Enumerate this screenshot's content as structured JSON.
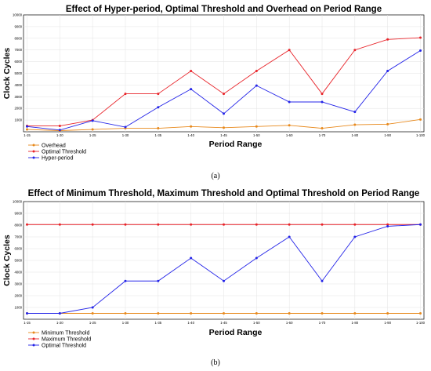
{
  "chart_data": [
    {
      "type": "line",
      "title": "Effect of Hyper-period, Optimal Threshold and Overhead on Period Range",
      "xlabel": "Period Range",
      "ylabel": "Clock Cycles",
      "categories": [
        "1-15",
        "1-20",
        "1-25",
        "1-30",
        "1-35",
        "1-40",
        "1-45",
        "1-50",
        "1-60",
        "1-70",
        "1-80",
        "1-90",
        "1-100"
      ],
      "yticks": [
        "1000",
        "2000",
        "3000",
        "4000",
        "5000",
        "6000",
        "7000",
        "8000",
        "9000",
        "10000"
      ],
      "ylim": [
        0,
        10000
      ],
      "grid": true,
      "legend_position": "bottom-left",
      "caption": "(a)",
      "series": [
        {
          "name": "Overhead",
          "color": "#E8891C",
          "values": [
            200,
            100,
            200,
            300,
            300,
            450,
            350,
            450,
            550,
            300,
            600,
            650,
            1050
          ]
        },
        {
          "name": "Optimal Threshold",
          "color": "#E8242A",
          "values": [
            500,
            500,
            1000,
            3250,
            3250,
            5200,
            3250,
            5200,
            7000,
            3250,
            7000,
            7900,
            8050
          ]
        },
        {
          "name": "Hyper-period",
          "color": "#2424E8",
          "values": [
            450,
            150,
            950,
            400,
            2100,
            3650,
            1550,
            3950,
            2550,
            2550,
            1700,
            5200,
            6950
          ]
        }
      ]
    },
    {
      "type": "line",
      "title": "Effect of Minimum Threshold, Maximum Threshold and Optimal Threshold on Period Range",
      "xlabel": "Period Range",
      "ylabel": "Clock Cycles",
      "categories": [
        "1-15",
        "1-20",
        "1-25",
        "1-30",
        "1-35",
        "1-40",
        "1-45",
        "1-50",
        "1-60",
        "1-70",
        "1-80",
        "1-90",
        "1-100"
      ],
      "yticks": [
        "1000",
        "2000",
        "3000",
        "4000",
        "5000",
        "6000",
        "7000",
        "8000",
        "9000",
        "10000"
      ],
      "ylim": [
        0,
        10000
      ],
      "grid": true,
      "legend_position": "bottom-left",
      "caption": "(b)",
      "series": [
        {
          "name": "Minimum Threshold",
          "color": "#E8891C",
          "values": [
            500,
            500,
            500,
            500,
            500,
            500,
            500,
            500,
            500,
            500,
            500,
            500,
            500
          ]
        },
        {
          "name": "Maximum Threshold",
          "color": "#E8242A",
          "values": [
            8050,
            8050,
            8050,
            8050,
            8050,
            8050,
            8050,
            8050,
            8050,
            8050,
            8050,
            8050,
            8050
          ]
        },
        {
          "name": "Optimal Threshold",
          "color": "#2424E8",
          "values": [
            500,
            500,
            1000,
            3250,
            3250,
            5200,
            3250,
            5200,
            7000,
            3250,
            7000,
            7900,
            8050
          ]
        }
      ]
    }
  ]
}
